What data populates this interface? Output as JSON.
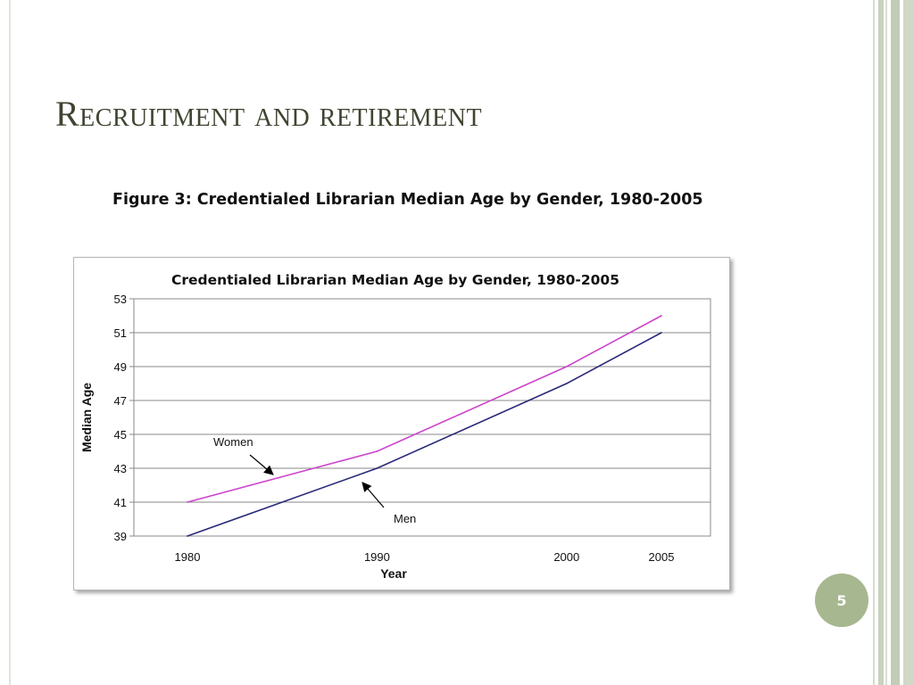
{
  "slide": {
    "title": "Recruitment and retirement",
    "caption": "Figure 3: Credentialed Librarian Median Age by Gender, 1980-2005",
    "page_number": "5"
  },
  "chart_data": {
    "type": "line",
    "title": "Credentialed Librarian Median Age by Gender, 1980-2005",
    "xlabel": "Year",
    "ylabel": "Median Age",
    "x": [
      1980,
      1990,
      2000,
      2005
    ],
    "ylim": [
      39,
      53
    ],
    "yticks": [
      39,
      41,
      43,
      45,
      47,
      49,
      51,
      53
    ],
    "grid": true,
    "series": [
      {
        "name": "Women",
        "values": [
          41,
          44,
          49,
          52
        ],
        "color": "#cc44cc"
      },
      {
        "name": "Men",
        "values": [
          39,
          43,
          48,
          51
        ],
        "color": "#2a2a7a"
      }
    ],
    "annotations": [
      "Women",
      "Men"
    ]
  }
}
